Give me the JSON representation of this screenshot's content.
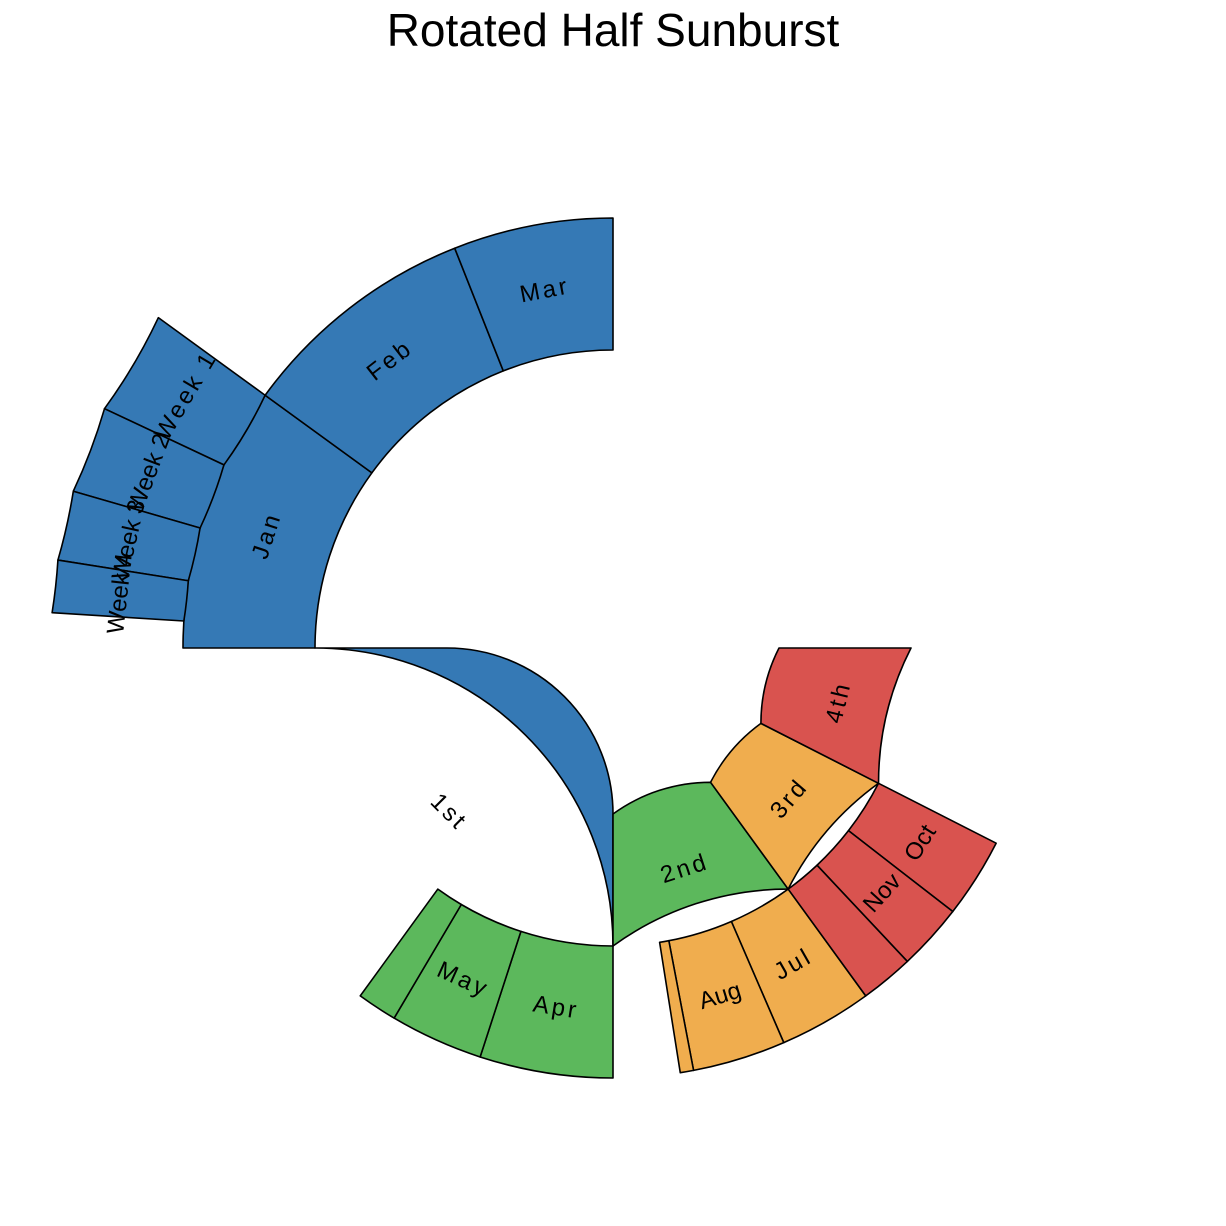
{
  "chart_data": {
    "type": "sunburst",
    "title": "Rotated Half Sunburst",
    "total": 100,
    "colors": {
      "1st": "#3579b5",
      "2nd": "#5cb85c",
      "3rd": "#f0ad4e",
      "4th": "#d9534f"
    },
    "nodes": [
      {
        "id": "1st",
        "label": "1st",
        "parent": "",
        "value": 50,
        "group": "1st",
        "spaced": true
      },
      {
        "id": "2nd",
        "label": "2nd",
        "parent": "",
        "value": 20,
        "group": "2nd",
        "spaced": true
      },
      {
        "id": "3rd",
        "label": "3rd",
        "parent": "",
        "value": 15,
        "group": "3rd",
        "spaced": true
      },
      {
        "id": "4th",
        "label": "4th",
        "parent": "",
        "value": 15,
        "group": "4th",
        "spaced": true
      },
      {
        "id": "Jan",
        "label": "Jan",
        "parent": "1st",
        "value": 20,
        "group": "1st",
        "spaced": true
      },
      {
        "id": "Feb",
        "label": "Feb",
        "parent": "1st",
        "value": 18,
        "group": "1st",
        "spaced": true
      },
      {
        "id": "Mar",
        "label": "Mar",
        "parent": "1st",
        "value": 12,
        "group": "1st",
        "spaced": true
      },
      {
        "id": "Apr",
        "label": "Apr",
        "parent": "2nd",
        "value": 10,
        "group": "2nd",
        "spaced": true
      },
      {
        "id": "May",
        "label": "May",
        "parent": "2nd",
        "value": 7,
        "group": "2nd",
        "spaced": true
      },
      {
        "id": "Jun",
        "label": "",
        "parent": "2nd",
        "value": 3,
        "group": "2nd",
        "spaced": false
      },
      {
        "id": "Jul",
        "label": "Jul",
        "parent": "3rd",
        "value": 7,
        "group": "3rd",
        "spaced": true
      },
      {
        "id": "Aug",
        "label": "Aug",
        "parent": "3rd",
        "value": 7,
        "group": "3rd",
        "spaced": false
      },
      {
        "id": "Sep",
        "label": "",
        "parent": "3rd",
        "value": 1,
        "group": "3rd",
        "spaced": false
      },
      {
        "id": "Oct",
        "label": "Oct",
        "parent": "4th",
        "value": 6,
        "group": "4th",
        "spaced": false
      },
      {
        "id": "Nov",
        "label": "Nov",
        "parent": "4th",
        "value": 5,
        "group": "4th",
        "spaced": false
      },
      {
        "id": "Dec",
        "label": "",
        "parent": "4th",
        "value": 4,
        "group": "4th",
        "spaced": false
      },
      {
        "id": "Week 1",
        "label": "Week 1",
        "parent": "Feb",
        "value": 6,
        "group": "1st",
        "spaced": true
      },
      {
        "id": "Week 2",
        "label": "Week 2",
        "parent": "Feb",
        "value": 5,
        "group": "1st",
        "spaced": false
      },
      {
        "id": "Week 3",
        "label": "Week 3",
        "parent": "Feb",
        "value": 4,
        "group": "1st",
        "spaced": false
      },
      {
        "id": "Week 4",
        "label": "Week 4",
        "parent": "Feb",
        "value": 3,
        "group": "1st",
        "spaced": false
      }
    ]
  }
}
